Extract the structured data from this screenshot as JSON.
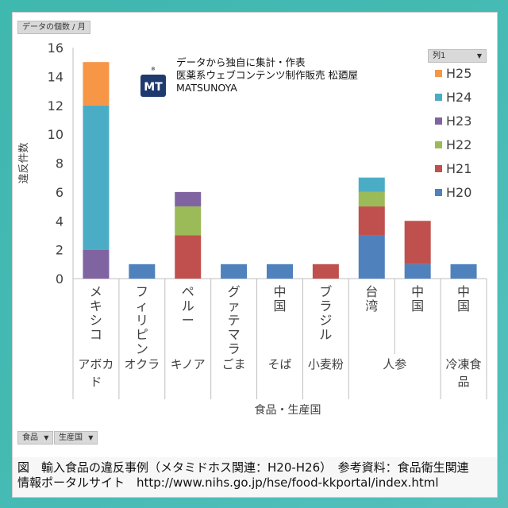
{
  "pivot": {
    "value_field": "データの個数 / 月",
    "series_field": "列1",
    "row_fields": [
      "食品",
      "生産国"
    ]
  },
  "logo": {
    "mark": "MT",
    "lines": [
      "データから独自に集計・作表",
      "医薬系ウェブコンテンツ制作販売 松廼屋",
      "MATSUNOYA"
    ]
  },
  "caption": {
    "line1": "図　輸入食品の違反事例（メタミドホス関連：H20-H26）　参考資料：食品衛生関連",
    "line2": "情報ポータルサイト　http://www.nihs.go.jp/hse/food-kkportal/index.html"
  },
  "chart_data": {
    "type": "bar",
    "stacked": true,
    "ylabel": "違反件数",
    "xlabel": "食品・生産国",
    "ylim": [
      0,
      16
    ],
    "yticks": [
      0,
      2,
      4,
      6,
      8,
      10,
      12,
      14,
      16
    ],
    "grid": false,
    "legend_position": "right",
    "categories": [
      {
        "food": "アボカド",
        "country": "メキシコ"
      },
      {
        "food": "オクラ",
        "country": "フィリピン"
      },
      {
        "food": "キノア",
        "country": "ペルー"
      },
      {
        "food": "ごま",
        "country": "グァテマラ"
      },
      {
        "food": "そば",
        "country": "中国"
      },
      {
        "food": "小麦粉",
        "country": "ブラジル"
      },
      {
        "food": "人参",
        "country": "台湾"
      },
      {
        "food": "人参",
        "country": "中国"
      },
      {
        "food": "冷凍食品",
        "country": "中国"
      }
    ],
    "groups": [
      {
        "label": "アボカド",
        "span": 1
      },
      {
        "label": "オクラ",
        "span": 1
      },
      {
        "label": "キノア",
        "span": 1
      },
      {
        "label": "ごま",
        "span": 1
      },
      {
        "label": "そば",
        "span": 1
      },
      {
        "label": "小麦粉",
        "span": 1
      },
      {
        "label": "人参",
        "span": 2
      },
      {
        "label": "冷凍食品",
        "span": 1
      }
    ],
    "series": [
      {
        "name": "H20",
        "color": "#4f81bd",
        "values": [
          0,
          1,
          0,
          1,
          1,
          0,
          3,
          1,
          1
        ]
      },
      {
        "name": "H21",
        "color": "#c0504d",
        "values": [
          0,
          0,
          3,
          0,
          0,
          1,
          2,
          3,
          0
        ]
      },
      {
        "name": "H22",
        "color": "#9bbb59",
        "values": [
          0,
          0,
          2,
          0,
          0,
          0,
          1,
          0,
          0
        ]
      },
      {
        "name": "H23",
        "color": "#8064a2",
        "values": [
          2,
          0,
          1,
          0,
          0,
          0,
          0,
          0,
          0
        ]
      },
      {
        "name": "H24",
        "color": "#4bacc6",
        "values": [
          10,
          0,
          0,
          0,
          0,
          0,
          1,
          0,
          0
        ]
      },
      {
        "name": "H25",
        "color": "#f79646",
        "values": [
          3,
          0,
          0,
          0,
          0,
          0,
          0,
          0,
          0
        ]
      }
    ]
  }
}
